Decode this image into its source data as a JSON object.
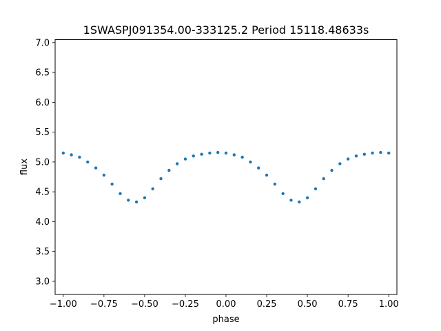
{
  "chart_data": {
    "type": "scatter",
    "title": "1SWASPJ091354.00-333125.2 Period 15118.48633s",
    "xlabel": "phase",
    "ylabel": "flux",
    "xlim": [
      -1.05,
      1.05
    ],
    "ylim": [
      2.78,
      7.05
    ],
    "x_ticks": [
      -1.0,
      -0.75,
      -0.5,
      -0.25,
      0.0,
      0.25,
      0.5,
      0.75,
      1.0
    ],
    "x_tick_labels": [
      "−1.00",
      "−0.75",
      "−0.50",
      "−0.25",
      "0.00",
      "0.25",
      "0.50",
      "0.75",
      "1.00"
    ],
    "y_ticks": [
      3.0,
      3.5,
      4.0,
      4.5,
      5.0,
      5.5,
      6.0,
      6.5,
      7.0
    ],
    "y_tick_labels": [
      "3.0",
      "3.5",
      "4.0",
      "4.5",
      "5.0",
      "5.5",
      "6.0",
      "6.5",
      "7.0"
    ],
    "grid": false,
    "point_color": "#1f77b4",
    "series": [
      {
        "x": [
          -1.0,
          -0.95,
          -0.9,
          -0.85,
          -0.8,
          -0.75,
          -0.7,
          -0.65,
          -0.6,
          -0.55,
          -0.5,
          -0.45,
          -0.4,
          -0.35,
          -0.3,
          -0.25,
          -0.2,
          -0.15,
          -0.1,
          -0.05,
          0.0,
          0.05,
          0.1,
          0.15,
          0.2,
          0.25,
          0.3,
          0.35,
          0.4,
          0.45,
          0.5,
          0.55,
          0.6,
          0.65,
          0.7,
          0.75,
          0.8,
          0.85,
          0.9,
          0.95,
          1.0
        ],
        "y": [
          5.15,
          5.12,
          5.08,
          5.0,
          4.9,
          4.78,
          4.63,
          4.47,
          4.36,
          4.33,
          4.4,
          4.55,
          4.72,
          4.86,
          4.97,
          5.05,
          5.1,
          5.13,
          5.15,
          5.16,
          5.15,
          5.12,
          5.08,
          5.0,
          4.9,
          4.78,
          4.63,
          4.47,
          4.36,
          4.33,
          4.4,
          4.55,
          4.72,
          4.86,
          4.97,
          5.05,
          5.1,
          5.13,
          5.15,
          5.16,
          5.15
        ]
      }
    ]
  }
}
